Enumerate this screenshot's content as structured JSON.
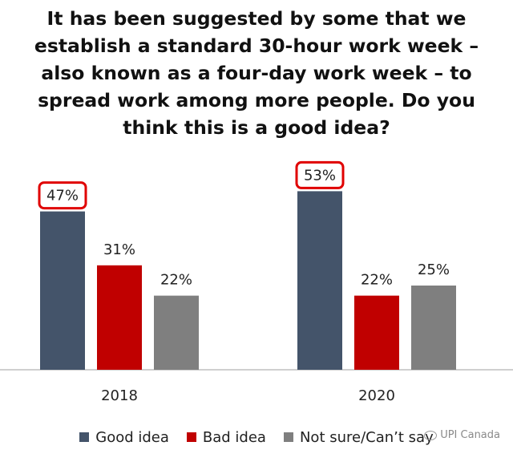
{
  "chart_data": {
    "type": "bar",
    "title_lines": [
      "It has been suggested by some that we",
      "establish a standard 30-hour work week –",
      "also known as a four-day work week –  to",
      "spread work among more people. Do you",
      "think this is a good idea?"
    ],
    "categories": [
      "2018",
      "2020"
    ],
    "series": [
      {
        "name": "Good idea",
        "color": "#44546A",
        "values": [
          47,
          53
        ]
      },
      {
        "name": "Bad idea",
        "color": "#C00000",
        "values": [
          31,
          22
        ]
      },
      {
        "name": "Not sure/Can’t say",
        "color": "#7F7F7F",
        "values": [
          22,
          25
        ]
      }
    ],
    "value_suffix": "%",
    "highlight": {
      "series_index": 0,
      "outline_color": "#E00000"
    },
    "ylim": [
      0,
      60
    ],
    "grid": false,
    "legend_position": "bottom"
  },
  "watermark": "UPI Canada"
}
